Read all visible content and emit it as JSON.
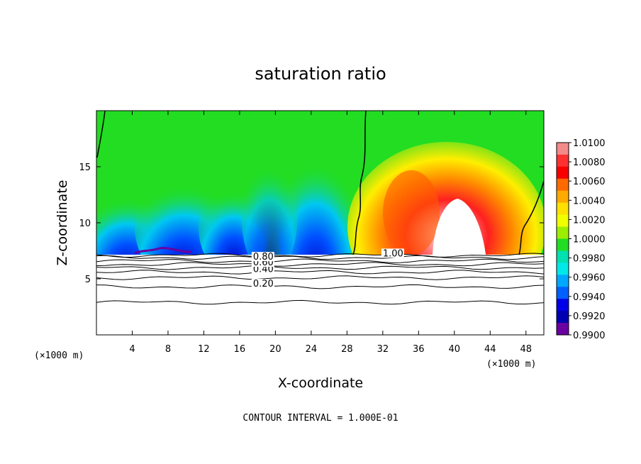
{
  "chart_data": {
    "type": "heatmap",
    "title": "saturation ratio",
    "xlabel": "X-coordinate",
    "ylabel": "Z-coordinate",
    "x_unit_label": "(×1000 m)",
    "y_unit_label": "(×1000 m)",
    "xlim": [
      0,
      50
    ],
    "ylim": [
      0,
      20
    ],
    "x_ticks": [
      "4",
      "8",
      "12",
      "16",
      "20",
      "24",
      "28",
      "32",
      "36",
      "40",
      "44",
      "48"
    ],
    "y_ticks": [
      "5",
      "10",
      "15"
    ],
    "contour_interval_text": "CONTOUR INTERVAL = 1.000E-01",
    "colorbar": {
      "labels": [
        "1.0100",
        "1.0080",
        "1.0060",
        "1.0040",
        "1.0020",
        "1.0000",
        "0.9980",
        "0.9960",
        "0.9940",
        "0.9920",
        "0.9900"
      ],
      "colors": [
        "#f48a8a",
        "#ff3030",
        "#f80000",
        "#ff6a00",
        "#ffaa00",
        "#ffe000",
        "#f0ff00",
        "#9cee00",
        "#22dd22",
        "#00e0b0",
        "#00e8e8",
        "#00a8ff",
        "#0060ff",
        "#0000e8",
        "#0000b0",
        "#6a00a0"
      ]
    },
    "surface_level_km": 7.2,
    "contour_labels": [
      {
        "text": "0.20",
        "x": 17.5,
        "z": 4.3
      },
      {
        "text": "0.40",
        "x": 17.5,
        "z": 5.6
      },
      {
        "text": "0.60",
        "x": 17.5,
        "z": 6.2
      },
      {
        "text": "0.80",
        "x": 17.5,
        "z": 6.7
      },
      {
        "text": "1.00",
        "x": 32,
        "z": 7.0
      }
    ],
    "lower_contour_levels": [
      2.9,
      4.3,
      5.1,
      5.6,
      6.0,
      6.3,
      6.6,
      6.9,
      7.1
    ]
  }
}
